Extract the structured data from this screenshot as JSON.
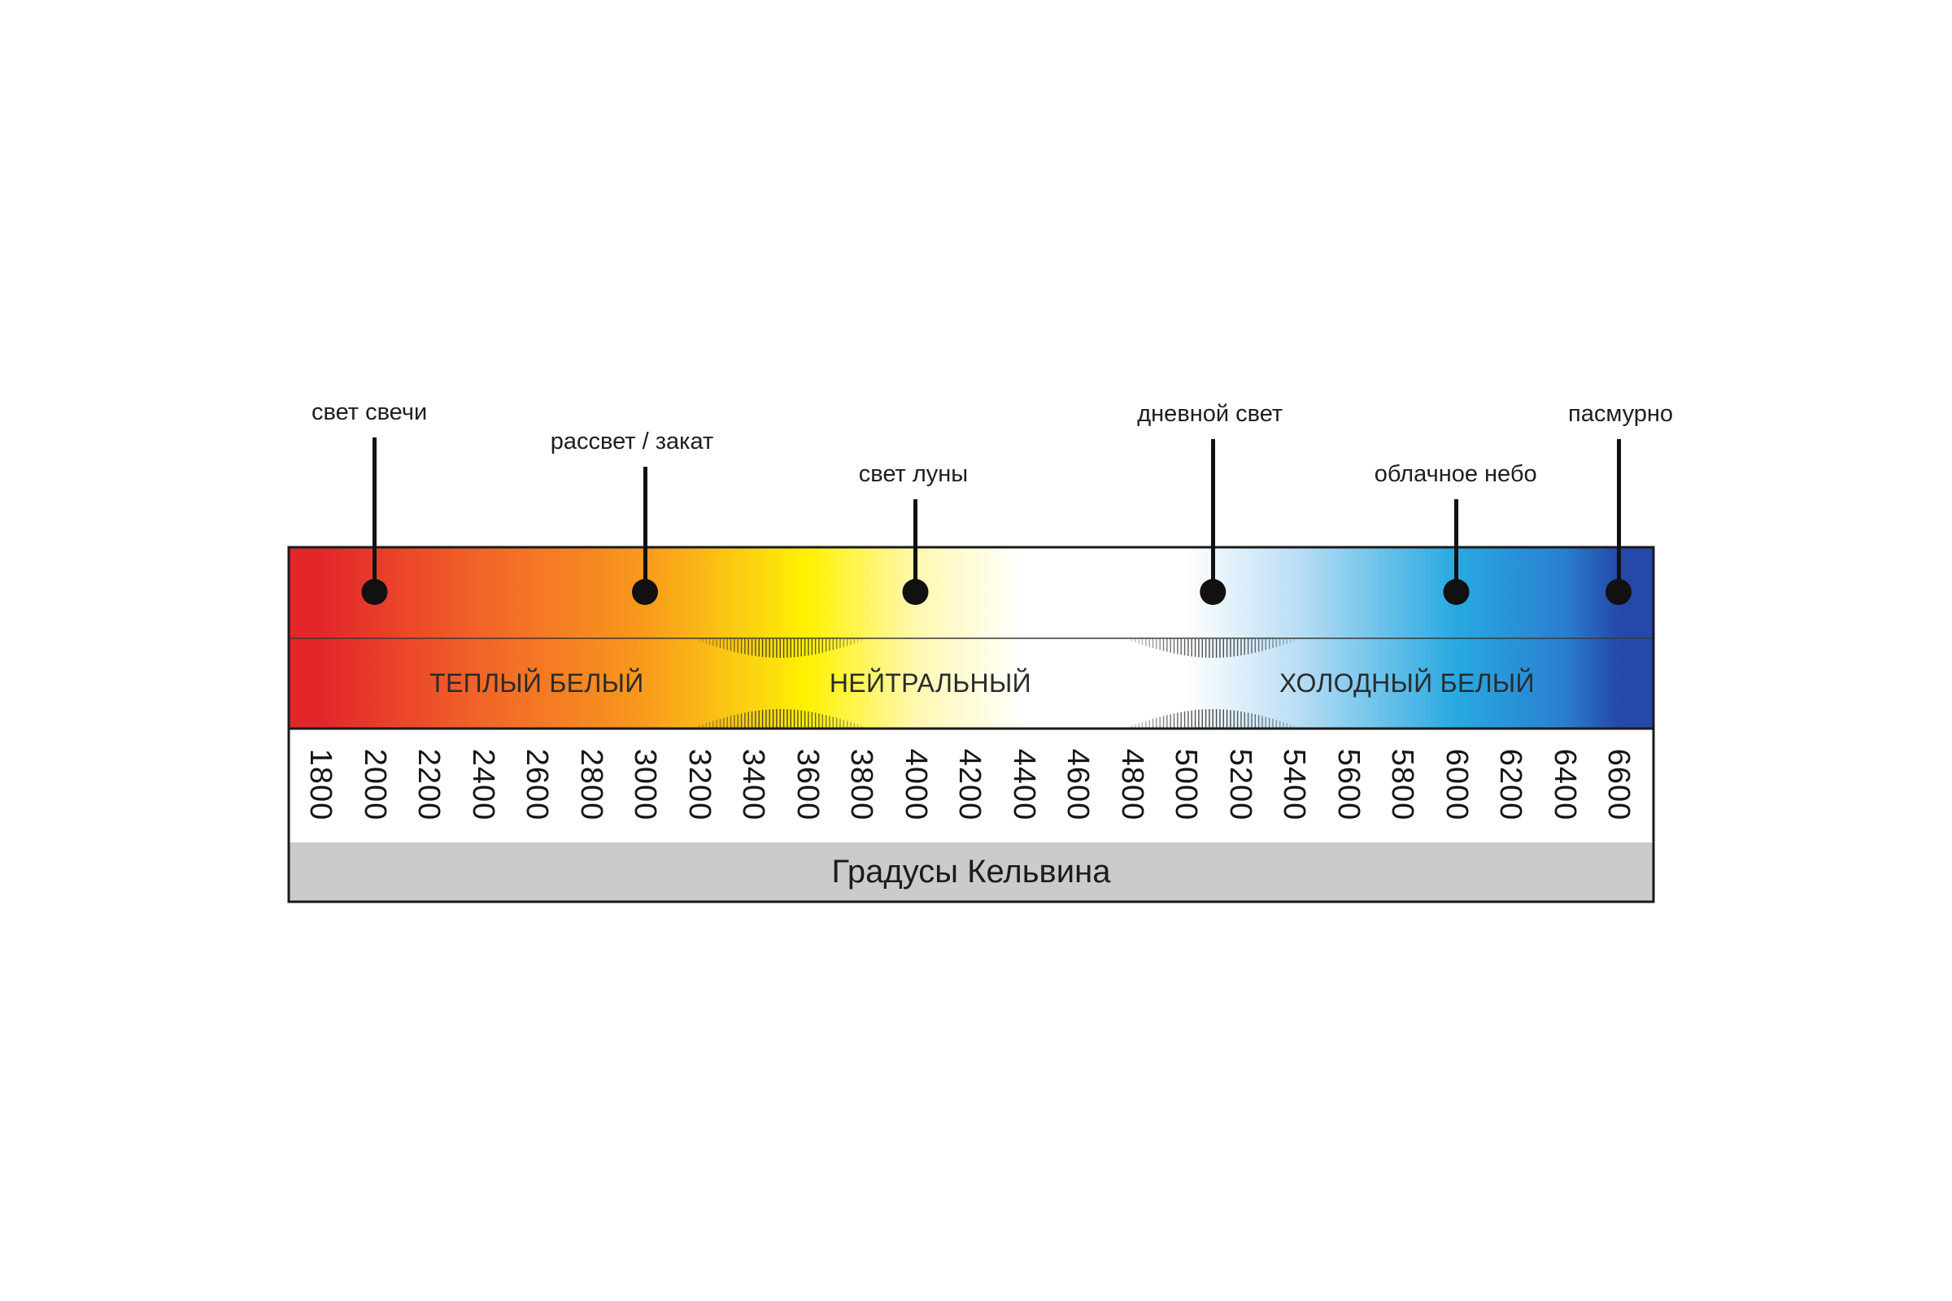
{
  "chart_data": {
    "type": "other",
    "title": "",
    "xlabel": "Градусы Кельвина",
    "ylabel": "",
    "xlim": [
      1800,
      6600
    ],
    "x_ticks": [
      1800,
      2000,
      2200,
      2400,
      2600,
      2800,
      3000,
      3200,
      3400,
      3600,
      3800,
      4000,
      4200,
      4400,
      4600,
      4800,
      5000,
      5200,
      5400,
      5600,
      5800,
      6000,
      6200,
      6400,
      6600
    ],
    "gradient_stops": [
      {
        "kelvin": 1800,
        "color": "#e3262a"
      },
      {
        "kelvin": 2400,
        "color": "#f26528"
      },
      {
        "kelvin": 3000,
        "color": "#f89a1c"
      },
      {
        "kelvin": 3400,
        "color": "#fcd410"
      },
      {
        "kelvin": 3600,
        "color": "#fff200"
      },
      {
        "kelvin": 4000,
        "color": "#fff8b0"
      },
      {
        "kelvin": 4400,
        "color": "#ffffff"
      },
      {
        "kelvin": 5000,
        "color": "#ffffff"
      },
      {
        "kelvin": 5400,
        "color": "#bcdff5"
      },
      {
        "kelvin": 6000,
        "color": "#27a9e1"
      },
      {
        "kelvin": 6400,
        "color": "#2a7fd0"
      },
      {
        "kelvin": 6600,
        "color": "#2549a8"
      }
    ],
    "annotations": [
      {
        "label": "свет свечи",
        "kelvin": 2000
      },
      {
        "label": "рассвет / закат",
        "kelvin": 3000
      },
      {
        "label": "свет луны",
        "kelvin": 4000
      },
      {
        "label": "дневной свет",
        "kelvin": 5100
      },
      {
        "label": "облачное небо",
        "kelvin": 6000
      },
      {
        "label": "пасмурно",
        "kelvin": 6600
      }
    ],
    "bands": [
      {
        "label": "ТЕПЛЫЙ БЕЛЫЙ",
        "kelvin_center": 2550
      },
      {
        "label": "НЕЙТРАЛЬНЫЙ",
        "kelvin_center": 4000
      },
      {
        "label": "ХОЛОДНЫЙ БЕЛЫЙ",
        "kelvin_center": 5750
      }
    ],
    "transition_zones": [
      {
        "from": 3200,
        "to": 3800
      },
      {
        "from": 4800,
        "to": 5400
      }
    ]
  }
}
